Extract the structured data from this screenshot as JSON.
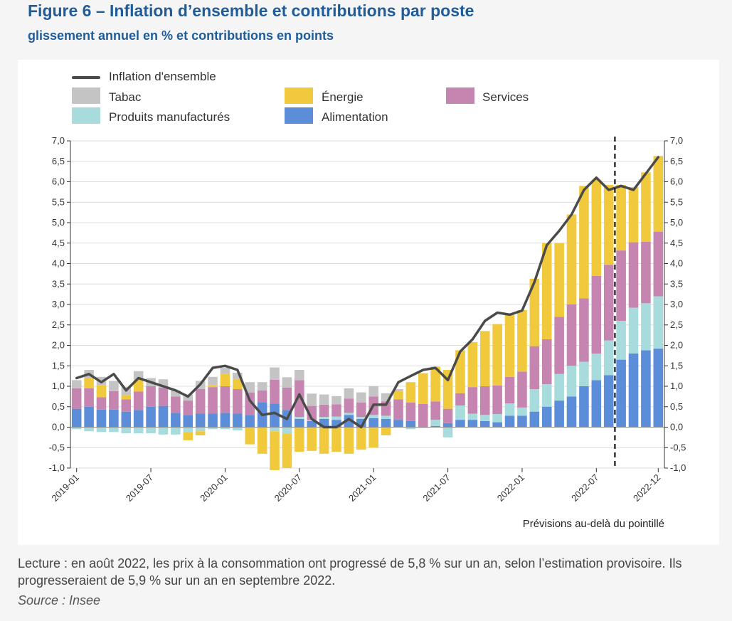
{
  "title": "Figure 6 – Inflation d’ensemble et contributions par poste",
  "subtitle": "glissement annuel en % et contributions en points",
  "reading_note": "Lecture : en août 2022, les prix à la consommation ont progressé de 5,8 % sur un an, selon l’estimation provisoire. Ils progresseraient de 5,9 % sur un an en septembre 2022.",
  "source": "Source : Insee",
  "colors": {
    "alimentation": "#5b8dd9",
    "produits": "#a8dcdc",
    "services": "#c585b0",
    "energie": "#f0c93c",
    "tabac": "#c4c4c4",
    "line": "#4a4a4a"
  },
  "chart_data": {
    "type": "bar",
    "title": "Inflation d’ensemble et contributions par poste",
    "ylabel": "glissement annuel en % et contributions en points",
    "ylim": [
      -1.0,
      7.0
    ],
    "y_ticks": [
      "-1,0",
      "-0,5",
      "0,0",
      "0,5",
      "1,0",
      "1,5",
      "2,0",
      "2,5",
      "3,0",
      "3,5",
      "4,0",
      "4,5",
      "5,0",
      "5,5",
      "6,0",
      "6,5",
      "7,0"
    ],
    "y_tick_values": [
      -1,
      -0.5,
      0,
      0.5,
      1,
      1.5,
      2,
      2.5,
      3,
      3.5,
      4,
      4.5,
      5,
      5.5,
      6,
      6.5,
      7
    ],
    "x_tick_labels": [
      "2019-01",
      "2019-07",
      "2020-01",
      "2020-07",
      "2021-01",
      "2021-07",
      "2022-01",
      "2022-07",
      "2022-12"
    ],
    "x_tick_indices": [
      0,
      6,
      12,
      18,
      24,
      30,
      36,
      42,
      47
    ],
    "forecast_note": "Prévisions au-delà du pointillé",
    "forecast_after_index": 43,
    "legend": {
      "line": "Inflation d'ensemble",
      "tabac": "Tabac",
      "energie": "Énergie",
      "services": "Services",
      "produits": "Produits manufacturés",
      "alimentation": "Alimentation"
    },
    "categories": [
      "2019-01",
      "2019-02",
      "2019-03",
      "2019-04",
      "2019-05",
      "2019-06",
      "2019-07",
      "2019-08",
      "2019-09",
      "2019-10",
      "2019-11",
      "2019-12",
      "2020-01",
      "2020-02",
      "2020-03",
      "2020-04",
      "2020-05",
      "2020-06",
      "2020-07",
      "2020-08",
      "2020-09",
      "2020-10",
      "2020-11",
      "2020-12",
      "2021-01",
      "2021-02",
      "2021-03",
      "2021-04",
      "2021-05",
      "2021-06",
      "2021-07",
      "2021-08",
      "2021-09",
      "2021-10",
      "2021-11",
      "2021-12",
      "2022-01",
      "2022-02",
      "2022-03",
      "2022-04",
      "2022-05",
      "2022-06",
      "2022-07",
      "2022-08",
      "2022-09",
      "2022-10",
      "2022-11",
      "2022-12"
    ],
    "series": [
      {
        "name": "Alimentation",
        "key": "alimentation",
        "values": [
          0.45,
          0.5,
          0.43,
          0.43,
          0.38,
          0.42,
          0.5,
          0.52,
          0.35,
          0.3,
          0.33,
          0.33,
          0.35,
          0.33,
          0.3,
          0.6,
          0.58,
          0.42,
          0.2,
          0.15,
          0.2,
          0.18,
          0.3,
          0.2,
          0.22,
          0.2,
          0.18,
          0.15,
          0.02,
          0.03,
          0.1,
          0.18,
          0.18,
          0.15,
          0.12,
          0.28,
          0.28,
          0.38,
          0.5,
          0.65,
          0.75,
          1.0,
          1.15,
          1.27,
          1.65,
          1.8,
          1.88,
          1.92
        ]
      },
      {
        "name": "Produits manufacturés",
        "key": "produits",
        "values": [
          -0.05,
          -0.1,
          -0.12,
          -0.12,
          -0.15,
          -0.15,
          -0.15,
          -0.18,
          -0.18,
          -0.12,
          -0.1,
          -0.05,
          -0.05,
          -0.08,
          -0.02,
          0.0,
          -0.1,
          -0.15,
          0.05,
          0.02,
          0.05,
          0.08,
          0.05,
          0.05,
          0.08,
          0.08,
          0.0,
          -0.05,
          -0.02,
          0.15,
          -0.25,
          0.35,
          0.15,
          0.15,
          0.2,
          0.3,
          0.2,
          0.55,
          0.55,
          0.65,
          0.75,
          0.6,
          0.65,
          0.85,
          0.95,
          1.12,
          1.15,
          1.28
        ]
      },
      {
        "name": "Services",
        "key": "services",
        "values": [
          0.5,
          0.45,
          0.3,
          0.45,
          0.3,
          0.45,
          0.5,
          0.45,
          0.4,
          0.35,
          0.6,
          0.65,
          0.65,
          0.6,
          0.55,
          0.3,
          0.58,
          0.55,
          0.9,
          0.35,
          0.3,
          0.3,
          0.35,
          0.35,
          0.45,
          0.35,
          0.5,
          0.45,
          0.55,
          0.45,
          0.35,
          0.3,
          0.65,
          0.7,
          0.7,
          0.65,
          0.88,
          1.05,
          1.1,
          1.4,
          1.5,
          1.55,
          1.9,
          1.85,
          1.72,
          1.6,
          1.5,
          1.58
        ]
      },
      {
        "name": "Énergie",
        "key": "energie",
        "values": [
          0.0,
          0.25,
          0.3,
          0.0,
          0.1,
          0.3,
          0.0,
          0.0,
          0.0,
          -0.2,
          -0.1,
          0.05,
          0.3,
          0.25,
          -0.4,
          -0.65,
          -0.95,
          -0.85,
          -0.6,
          -0.58,
          -0.65,
          -0.6,
          -0.65,
          -0.55,
          -0.5,
          -0.2,
          0.2,
          0.5,
          0.75,
          0.85,
          0.95,
          1.05,
          1.1,
          1.35,
          1.5,
          1.52,
          1.5,
          1.65,
          2.35,
          1.8,
          2.2,
          2.75,
          2.35,
          1.95,
          1.6,
          1.35,
          1.7,
          1.85
        ]
      },
      {
        "name": "Tabac",
        "key": "tabac",
        "values": [
          0.2,
          0.2,
          0.2,
          0.25,
          0.2,
          0.2,
          0.2,
          0.2,
          0.15,
          0.15,
          0.2,
          0.2,
          0.15,
          0.15,
          0.25,
          0.2,
          0.3,
          0.25,
          0.25,
          0.3,
          0.25,
          0.2,
          0.25,
          0.25,
          0.25,
          0.2,
          0.05,
          0.0,
          0.0,
          0.0,
          0.0,
          0.0,
          0.0,
          0.0,
          0.0,
          0.0,
          0.0,
          0.0,
          0.0,
          0.0,
          0.0,
          0.0,
          0.0,
          0.0,
          0.0,
          0.0,
          0.0,
          0.0
        ]
      },
      {
        "name": "Inflation d'ensemble",
        "key": "line",
        "type": "line",
        "values": [
          1.2,
          1.3,
          1.1,
          1.3,
          0.9,
          1.2,
          1.1,
          1.0,
          0.9,
          0.75,
          1.05,
          1.45,
          1.5,
          1.4,
          0.65,
          0.3,
          0.35,
          0.2,
          0.8,
          0.2,
          0.0,
          0.0,
          0.2,
          0.0,
          0.55,
          0.55,
          1.1,
          1.25,
          1.4,
          1.45,
          1.15,
          1.85,
          2.15,
          2.6,
          2.8,
          2.75,
          2.85,
          3.55,
          4.45,
          4.8,
          5.2,
          5.8,
          6.1,
          5.8,
          5.9,
          5.8,
          6.2,
          6.6
        ]
      }
    ]
  }
}
